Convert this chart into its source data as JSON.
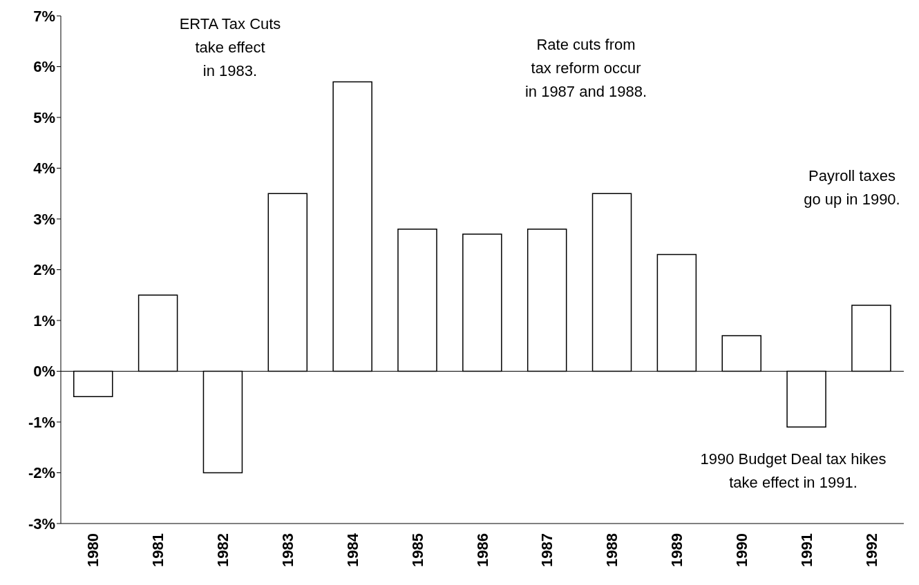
{
  "chart_data": {
    "type": "bar",
    "categories": [
      "1980",
      "1981",
      "1982",
      "1983",
      "1984",
      "1985",
      "1986",
      "1987",
      "1988",
      "1989",
      "1990",
      "1991",
      "1992"
    ],
    "values": [
      -0.5,
      1.5,
      -2.0,
      3.5,
      5.7,
      2.8,
      2.7,
      2.8,
      3.5,
      2.3,
      0.7,
      -1.1,
      1.3
    ],
    "color": "#ffffff",
    "ylim": [
      -3,
      7
    ],
    "yticks": [
      {
        "value": -3,
        "label": "-3%"
      },
      {
        "value": -2,
        "label": "-2%"
      },
      {
        "value": -1,
        "label": "-1%"
      },
      {
        "value": 0,
        "label": "0%"
      },
      {
        "value": 1,
        "label": "1%"
      },
      {
        "value": 2,
        "label": "2%"
      },
      {
        "value": 3,
        "label": "3%"
      },
      {
        "value": 4,
        "label": "4%"
      },
      {
        "value": 5,
        "label": "5%"
      },
      {
        "value": 6,
        "label": "6%"
      },
      {
        "value": 7,
        "label": "7%"
      }
    ],
    "grid": false,
    "ref_lines": [
      {
        "axis": "y",
        "value": 0,
        "color": "#000000"
      }
    ],
    "legend": false,
    "annotations": [
      "ERTA Tax Cuts\ntake effect\nin 1983.",
      "Rate cuts from\ntax reform occur\nin 1987 and 1988.",
      "Payroll taxes\ngo up in 1990.",
      "1990 Budget Deal tax hikes\ntake effect in 1991."
    ]
  }
}
